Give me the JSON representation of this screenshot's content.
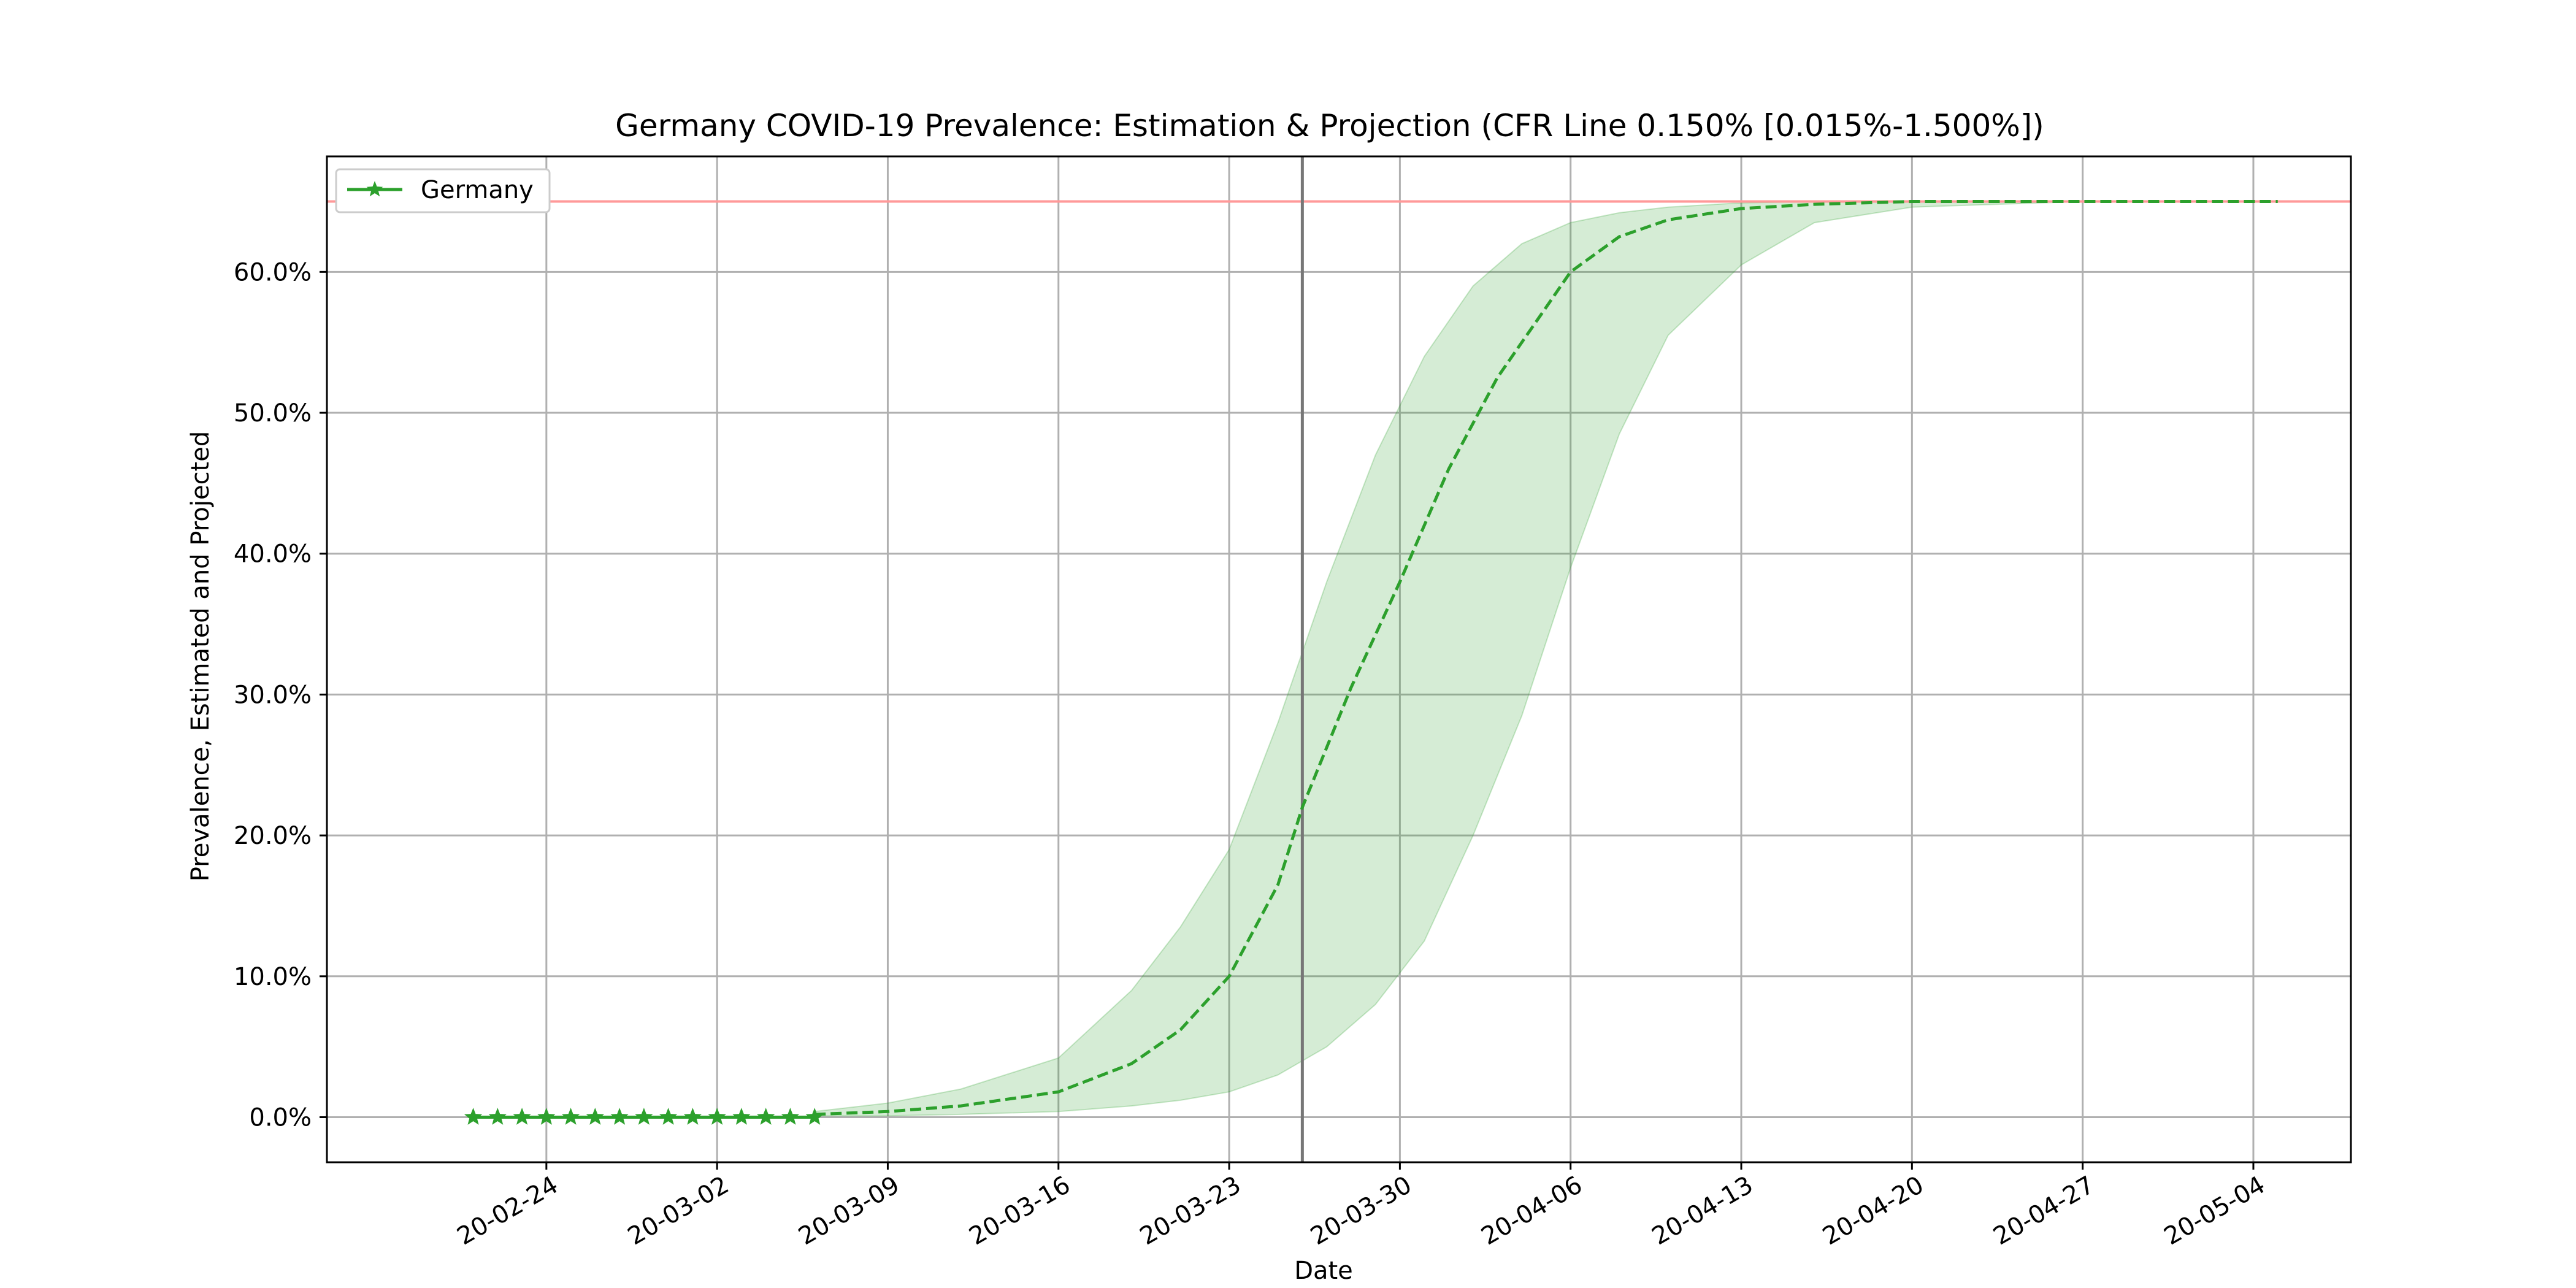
{
  "chart_data": {
    "type": "line",
    "title": "Germany COVID-19 Prevalence: Estimation & Projection (CFR Line 0.150% [0.015%-1.500%])",
    "xlabel": "Date",
    "ylabel": "Prevalence, Estimated and Projected",
    "x_tick_labels": [
      "20-02-24",
      "20-03-02",
      "20-03-09",
      "20-03-16",
      "20-03-23",
      "20-03-30",
      "20-04-06",
      "20-04-13",
      "20-04-20",
      "20-04-27",
      "20-05-04"
    ],
    "x_tick_dates": [
      "2020-02-24",
      "2020-03-02",
      "2020-03-09",
      "2020-03-16",
      "2020-03-23",
      "2020-03-30",
      "2020-04-06",
      "2020-04-13",
      "2020-04-20",
      "2020-04-27",
      "2020-05-04"
    ],
    "xlim": [
      "2020-02-15",
      "2020-05-08"
    ],
    "y_tick_labels": [
      "0.0%",
      "10.0%",
      "20.0%",
      "30.0%",
      "40.0%",
      "50.0%",
      "60.0%"
    ],
    "y_tick_values": [
      0,
      10,
      20,
      30,
      40,
      50,
      60
    ],
    "ylim": [
      -3.2,
      68.2
    ],
    "grid": true,
    "legend": {
      "placement": "top-left",
      "entries": [
        {
          "label": "Germany",
          "color": "#2ca02c",
          "marker": "star"
        }
      ]
    },
    "reference_lines": [
      {
        "orientation": "horizontal",
        "y": 65,
        "color": "#ff9999"
      },
      {
        "orientation": "vertical",
        "x": "2020-03-26",
        "color": "#777777"
      }
    ],
    "series": [
      {
        "name": "Germany",
        "style": "line-with-star-markers",
        "color": "#2ca02c",
        "x": [
          "2020-02-21",
          "2020-02-22",
          "2020-02-23",
          "2020-02-24",
          "2020-02-25",
          "2020-02-26",
          "2020-02-27",
          "2020-02-28",
          "2020-02-29",
          "2020-03-01",
          "2020-03-02",
          "2020-03-03",
          "2020-03-04",
          "2020-03-05",
          "2020-03-06"
        ],
        "y": [
          0,
          0,
          0,
          0,
          0,
          0,
          0,
          0,
          0,
          0,
          0,
          0,
          0,
          0,
          0
        ]
      },
      {
        "style": "dashed-projection",
        "color": "#2ca02c",
        "x": [
          "2020-03-06",
          "2020-03-09",
          "2020-03-12",
          "2020-03-16",
          "2020-03-19",
          "2020-03-21",
          "2020-03-23",
          "2020-03-25",
          "2020-03-26",
          "2020-03-28",
          "2020-03-30",
          "2020-04-01",
          "2020-04-03",
          "2020-04-05",
          "2020-04-06",
          "2020-04-08",
          "2020-04-10",
          "2020-04-13",
          "2020-04-16",
          "2020-04-20",
          "2020-04-27",
          "2020-05-05"
        ],
        "y": [
          0.2,
          0.4,
          0.8,
          1.8,
          3.8,
          6.2,
          10.0,
          16.5,
          22.0,
          30.5,
          38.0,
          46.0,
          52.5,
          57.5,
          60.0,
          62.5,
          63.7,
          64.5,
          64.8,
          65.0,
          65.0,
          65.0
        ]
      }
    ],
    "band": {
      "color": "#2ca02c",
      "x": [
        "2020-03-06",
        "2020-03-09",
        "2020-03-12",
        "2020-03-16",
        "2020-03-19",
        "2020-03-21",
        "2020-03-23",
        "2020-03-25",
        "2020-03-27",
        "2020-03-29",
        "2020-03-31",
        "2020-04-02",
        "2020-04-04",
        "2020-04-06",
        "2020-04-08",
        "2020-04-10",
        "2020-04-13",
        "2020-04-16",
        "2020-04-20",
        "2020-04-27",
        "2020-05-05"
      ],
      "upper": [
        0.4,
        1.0,
        2.0,
        4.2,
        9.0,
        13.5,
        19.0,
        28.0,
        38.0,
        47.0,
        54.0,
        59.0,
        62.0,
        63.5,
        64.2,
        64.6,
        64.9,
        65.0,
        65.0,
        65.0,
        65.0
      ],
      "lower": [
        0.1,
        0.1,
        0.2,
        0.4,
        0.8,
        1.2,
        1.8,
        3.0,
        5.0,
        8.0,
        12.5,
        20.0,
        28.5,
        39.0,
        48.5,
        55.5,
        60.5,
        63.5,
        64.6,
        65.0,
        65.0
      ]
    }
  }
}
